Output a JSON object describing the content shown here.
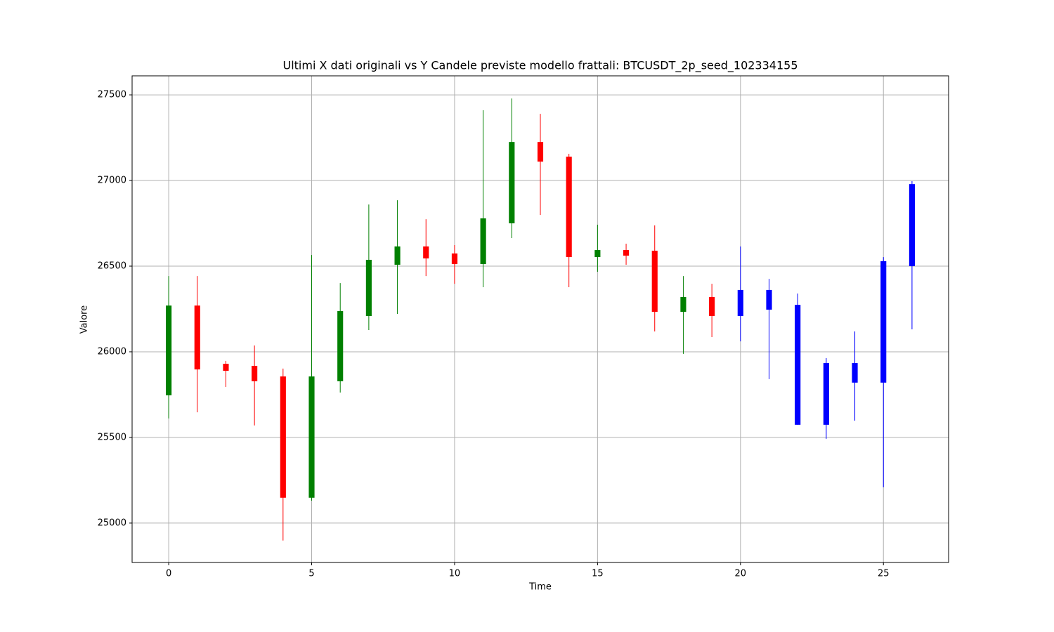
{
  "chart_data": {
    "type": "candlestick",
    "title": "Ultimi X dati originali vs Y Candele previste modello frattali: BTCUSDT_2p_seed_102334155",
    "xlabel": "Time",
    "ylabel": "Valore",
    "xlim": [
      -1.28,
      27.28
    ],
    "ylim": [
      24770,
      27611
    ],
    "xticks": [
      0,
      5,
      10,
      15,
      20,
      25
    ],
    "yticks": [
      25000,
      25500,
      26000,
      26500,
      27000,
      27500
    ],
    "grid": true,
    "series": [
      {
        "up_color": "green",
        "down_color": "red",
        "x": [
          0,
          1,
          2,
          3,
          4,
          5,
          6,
          7,
          8,
          9,
          10,
          11,
          12,
          13,
          14,
          15,
          16,
          17,
          18,
          19
        ],
        "open": [
          25746,
          26270,
          25930,
          25918,
          25856,
          25148,
          25828,
          26209,
          26508,
          26615,
          26574,
          26512,
          26750,
          27225,
          27139,
          26553,
          26594,
          26590,
          26233,
          26320
        ],
        "high": [
          26442,
          26442,
          25947,
          26037,
          25902,
          26565,
          26401,
          26860,
          26885,
          26774,
          26623,
          27410,
          27479,
          27389,
          27156,
          26742,
          26631,
          26738,
          26442,
          26397
        ],
        "low": [
          25611,
          25647,
          25795,
          25570,
          24898,
          25131,
          25762,
          26127,
          26221,
          26442,
          26397,
          26377,
          26664,
          26799,
          26377,
          26467,
          26508,
          26119,
          25988,
          26086
        ],
        "close": [
          26270,
          25897,
          25889,
          25828,
          25148,
          25856,
          26238,
          26537,
          26615,
          26545,
          26512,
          26779,
          27225,
          27110,
          26553,
          26594,
          26561,
          26233,
          26320,
          26209
        ]
      },
      {
        "color": "blue",
        "x": [
          20,
          21,
          22,
          23,
          24,
          25,
          26
        ],
        "open": [
          26209,
          26361,
          26274,
          25574,
          25934,
          25820,
          26500
        ],
        "high": [
          26615,
          26426,
          26340,
          25963,
          26119,
          26553,
          26996
        ],
        "low": [
          26061,
          25840,
          25574,
          25492,
          25598,
          25209,
          26131
        ],
        "close": [
          26361,
          26246,
          25574,
          25934,
          25820,
          26529,
          26979
        ]
      }
    ]
  }
}
